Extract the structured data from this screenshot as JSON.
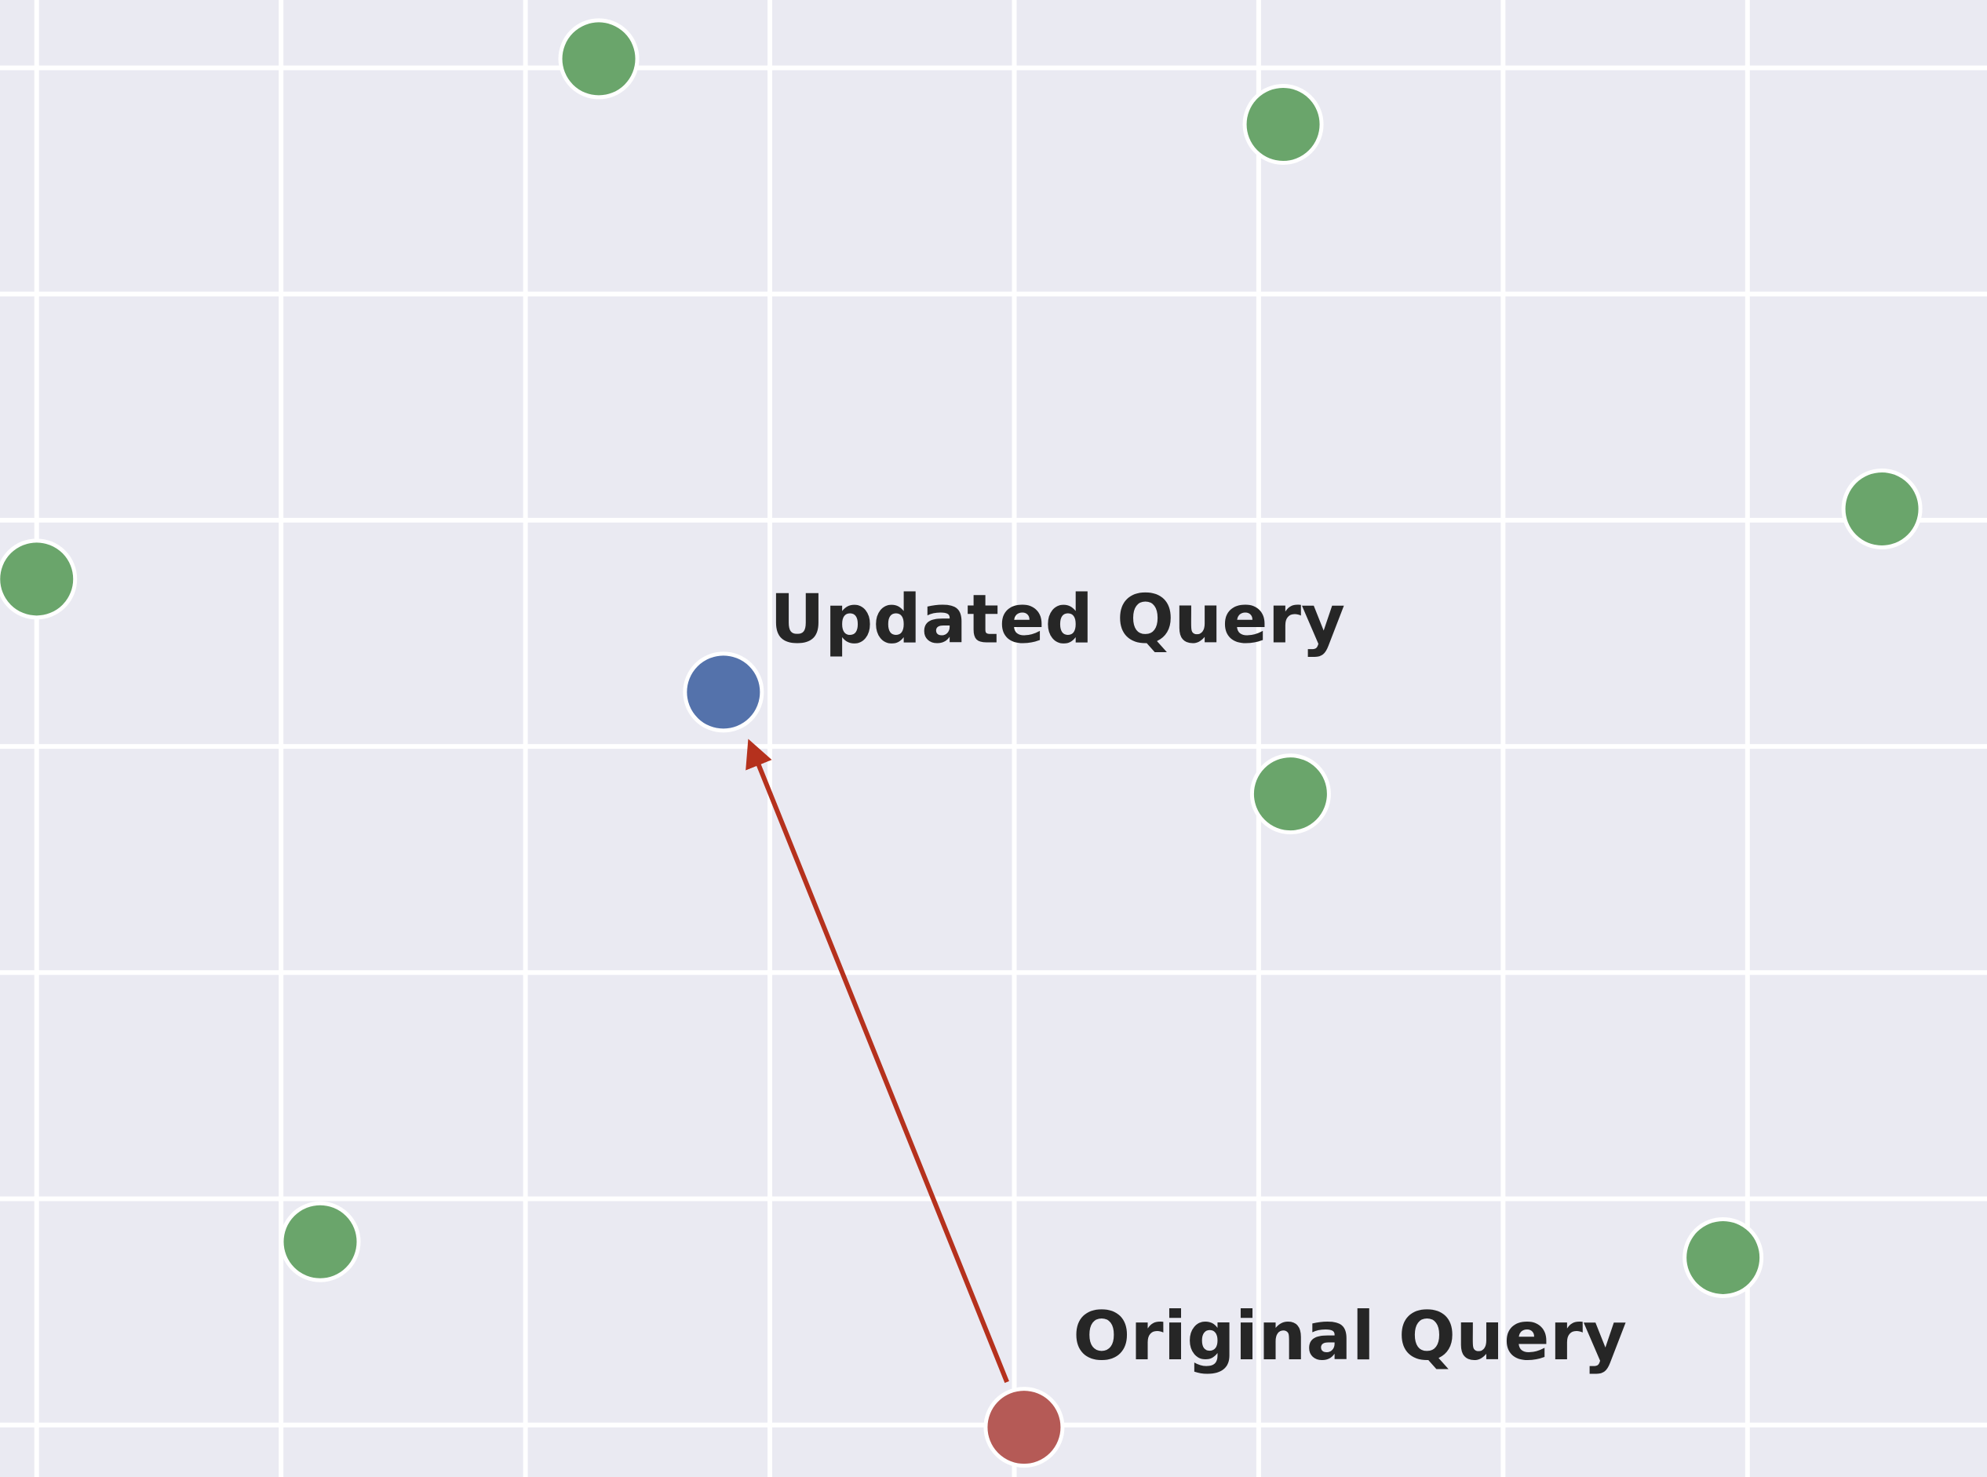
{
  "chart_data": {
    "type": "scatter",
    "title": "",
    "xlabel": "",
    "ylabel": "",
    "grid": true,
    "background": "#eaeaf2",
    "grid_color": "#ffffff",
    "xlim": [
      -0.15,
      7.98
    ],
    "ylim": [
      -0.23,
      6.3
    ],
    "series": [
      {
        "role": "document",
        "color": "#6aa56b",
        "points": [
          {
            "x": 2.3,
            "y": 6.04
          },
          {
            "x": 5.1,
            "y": 5.75
          },
          {
            "x": 7.55,
            "y": 4.05
          },
          {
            "x": 0.0,
            "y": 3.74
          },
          {
            "x": 5.13,
            "y": 2.79
          },
          {
            "x": 1.16,
            "y": 0.81
          },
          {
            "x": 6.9,
            "y": 0.74
          }
        ]
      },
      {
        "role": "original-query",
        "color": "#b55a56",
        "points": [
          {
            "x": 4.04,
            "y": -0.01
          }
        ]
      },
      {
        "role": "updated-query",
        "color": "#5472ab",
        "points": [
          {
            "x": 2.81,
            "y": 3.24
          }
        ]
      }
    ],
    "arrow": {
      "from": {
        "x": 3.97,
        "y": 0.19
      },
      "to": {
        "x": 2.92,
        "y": 3.01
      },
      "color": "#b5311d"
    },
    "annotations": [
      {
        "text": "Updated Query",
        "x": 3.0,
        "y": 3.46
      },
      {
        "text": "Original Query",
        "x": 4.24,
        "y": 0.29
      }
    ]
  }
}
